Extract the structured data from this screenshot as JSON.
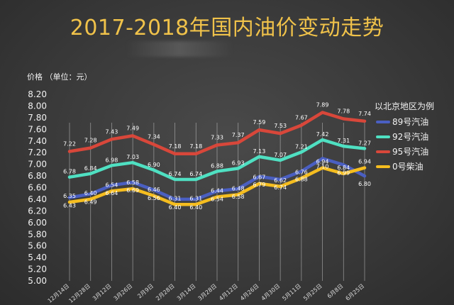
{
  "chart_data": {
    "type": "line",
    "title": "2017-2018年国内油价变动走势",
    "ylabel": "价格 （单位：元）",
    "ylim": [
      5.0,
      8.2
    ],
    "yticks": [
      "8.20",
      "8.00",
      "7.80",
      "7.60",
      "7.40",
      "7.20",
      "7.00",
      "6.80",
      "6.60",
      "6.40",
      "6.20",
      "6.00",
      "5.80",
      "5.60",
      "5.40",
      "5.20",
      "5.00"
    ],
    "categories": [
      "12月14日",
      "12月28日",
      "3月12日",
      "3月26日",
      "2月9日",
      "2月28日",
      "3月14日",
      "3月28日",
      "4月12日",
      "4月26日",
      "4月30日",
      "5月11日",
      "5月25日",
      "6月8日",
      "6月25日"
    ],
    "legend_title": "以北京地区为例",
    "grid": "vertical",
    "series": [
      {
        "name": "89号汽油",
        "color": "#4a5fc2",
        "values": [
          6.43,
          6.49,
          6.64,
          6.69,
          6.56,
          6.4,
          6.4,
          6.54,
          6.58,
          6.79,
          6.74,
          6.88,
          7.1,
          6.99,
          6.8
        ],
        "labels": [
          "6.43",
          "6.49",
          "6.64",
          "6.69",
          "6.56",
          "6.40",
          "6.40",
          "6.54",
          "6.58",
          "6.79",
          "6.74",
          "6.88",
          "7.10",
          "6.99",
          "6.80"
        ]
      },
      {
        "name": "92号汽油",
        "color": "#4fe0c2",
        "values": [
          6.78,
          6.84,
          6.98,
          7.03,
          6.9,
          6.74,
          6.74,
          6.88,
          6.93,
          7.13,
          7.07,
          7.21,
          7.42,
          7.31,
          7.27
        ],
        "labels": [
          "6.78",
          "6.84",
          "6.98",
          "7.03",
          "6.90",
          "6.74",
          "6.74",
          "6.88",
          "6.93",
          "7.13",
          "7.07",
          "7.21",
          "7.42",
          "7.31",
          "7.27"
        ]
      },
      {
        "name": "95号汽油",
        "color": "#d8473a",
        "values": [
          7.22,
          7.28,
          7.43,
          7.49,
          7.34,
          7.18,
          7.18,
          7.33,
          7.37,
          7.59,
          7.53,
          7.67,
          7.89,
          7.78,
          7.74
        ],
        "labels": [
          "7.22",
          "7.28",
          "7.43",
          "7.49",
          "7.34",
          "7.18",
          "7.18",
          "7.33",
          "7.37",
          "7.59",
          "7.53",
          "7.67",
          "7.89",
          "7.78",
          "7.74"
        ]
      },
      {
        "name": "0号柴油",
        "color": "#f5bd1f",
        "values": [
          6.35,
          6.4,
          6.54,
          6.58,
          6.46,
          6.31,
          6.31,
          6.44,
          6.48,
          6.67,
          6.62,
          6.76,
          6.94,
          6.84,
          6.94
        ],
        "labels": [
          "6.35",
          "6.40",
          "6.54",
          "6.58",
          "6.46",
          "6.31",
          "6.31",
          "6.44",
          "6.48",
          "6.67",
          "6.62",
          "6.76",
          "6.94",
          "6.84",
          "6.94"
        ]
      }
    ]
  }
}
